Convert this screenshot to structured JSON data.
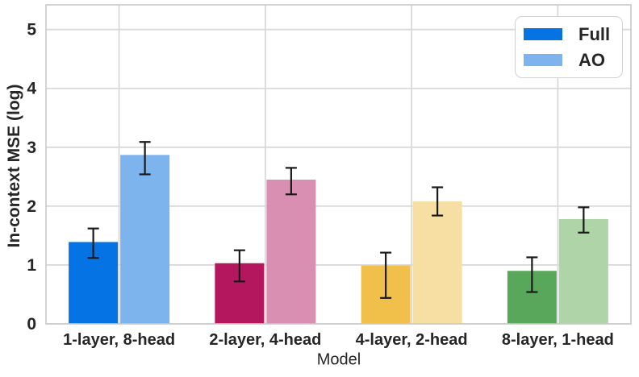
{
  "colors": {
    "background": "#ffffff",
    "grid": "#d9d9d9",
    "spine": "#c9c9c9",
    "error_bar": "#1a1a1a",
    "text": "#262626"
  },
  "chart_data": {
    "type": "bar",
    "title": "",
    "xlabel": "Model",
    "ylabel": "In-context MSE (log)",
    "categories": [
      "1-layer, 8-head",
      "2-layer, 4-head",
      "4-layer, 2-head",
      "8-layer, 1-head"
    ],
    "series": [
      {
        "name": "Full",
        "values": [
          1.39,
          1.03,
          0.99,
          0.9
        ],
        "err_lo": [
          1.12,
          0.72,
          0.44,
          0.54
        ],
        "err_hi": [
          1.62,
          1.25,
          1.21,
          1.13
        ],
        "colors": [
          "#0573e3",
          "#b5175e",
          "#f1c04b",
          "#58a75a"
        ]
      },
      {
        "name": "AO",
        "values": [
          2.87,
          2.45,
          2.08,
          1.78
        ],
        "err_lo": [
          2.54,
          2.2,
          1.84,
          1.55
        ],
        "err_hi": [
          3.09,
          2.65,
          2.32,
          1.98
        ],
        "colors": [
          "#7eb4ee",
          "#d88fb1",
          "#f7dfa4",
          "#aed4a7"
        ]
      }
    ],
    "yticks": [
      0,
      1,
      2,
      3,
      4,
      5
    ],
    "ylim": [
      0,
      5.42
    ],
    "grid": true,
    "legend_position": "upper right"
  }
}
